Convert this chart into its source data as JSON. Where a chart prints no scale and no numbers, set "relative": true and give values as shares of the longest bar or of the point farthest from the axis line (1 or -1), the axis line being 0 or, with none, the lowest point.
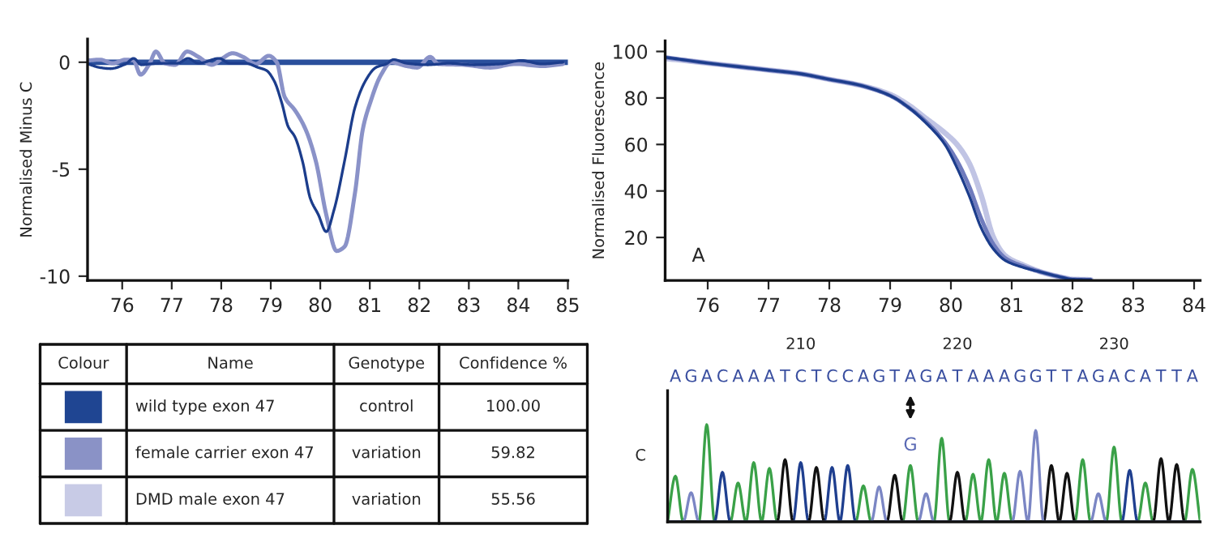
{
  "chart_data": [
    {
      "type": "line",
      "ylabel": "Normalised Minus C",
      "xlim": [
        75.3,
        85
      ],
      "ylim": [
        -10.2,
        1.08
      ],
      "xticks": [
        76,
        77,
        78,
        79,
        80,
        81,
        82,
        83,
        84,
        85
      ],
      "yticks": [
        0,
        -5,
        -10
      ],
      "series": [
        {
          "color": "#2a4f9c",
          "x": [
            75.3,
            85
          ],
          "values": [
            0,
            0
          ]
        },
        {
          "color": "#8a92c8",
          "x": [
            75.31,
            75.55,
            75.81,
            76.07,
            76.23,
            76.37,
            76.55,
            76.68,
            76.86,
            77.07,
            77.31,
            77.54,
            77.81,
            78.02,
            78.23,
            78.44,
            78.7,
            78.96,
            79.12,
            79.28,
            79.49,
            79.7,
            79.91,
            80.12,
            80.33,
            80.49,
            80.7,
            80.86,
            81.01,
            81.22,
            81.43,
            81.75,
            81.96,
            82.22,
            82.38,
            82.9,
            83.43,
            83.95,
            84.48,
            84.9
          ],
          "values": [
            0.08,
            0.12,
            -0.05,
            0.12,
            0.08,
            -0.58,
            -0.08,
            0.5,
            -0.05,
            -0.12,
            0.5,
            0.25,
            -0.12,
            0.18,
            0.42,
            0.25,
            -0.08,
            0.3,
            0,
            -1.62,
            -2.25,
            -3.12,
            -4.62,
            -7.12,
            -8.82,
            -8.62,
            -6.12,
            -3.12,
            -1.88,
            -0.62,
            0,
            -0.18,
            -0.25,
            0.25,
            -0.08,
            -0.12,
            -0.25,
            -0.08,
            -0.18,
            -0.08
          ]
        },
        {
          "color": "#1c3d8c",
          "x": [
            75.31,
            75.55,
            75.76,
            76.07,
            76.23,
            76.39,
            76.55,
            76.81,
            77.12,
            77.33,
            77.54,
            77.96,
            78.17,
            78.49,
            78.75,
            78.91,
            79.07,
            79.22,
            79.35,
            79.49,
            79.64,
            79.8,
            79.96,
            80.12,
            80.28,
            80.49,
            80.7,
            80.91,
            81.12,
            81.33,
            81.48,
            81.75,
            82.17,
            82.59,
            83.11,
            83.64,
            84.06,
            84.48,
            84.9
          ],
          "values": [
            -0.08,
            -0.25,
            -0.3,
            -0.08,
            0.18,
            -0.12,
            -0.08,
            -0.05,
            -0.05,
            0.18,
            -0.05,
            0.18,
            -0.05,
            -0.05,
            -0.25,
            -0.38,
            -0.88,
            -1.88,
            -3.0,
            -3.5,
            -4.62,
            -6.38,
            -7.12,
            -7.92,
            -6.88,
            -4.62,
            -2.12,
            -0.88,
            -0.25,
            -0.08,
            0.12,
            -0.05,
            -0.12,
            -0.05,
            -0.12,
            -0.08,
            0.08,
            -0.08,
            0
          ]
        }
      ]
    },
    {
      "type": "line",
      "ylabel": "Normalised Fluorescence",
      "annotations": [
        "A"
      ],
      "xlim": [
        75.3,
        84.1
      ],
      "ylim": [
        1.5,
        104.6
      ],
      "xticks": [
        76,
        77,
        78,
        79,
        80,
        81,
        82,
        83,
        84
      ],
      "yticks": [
        20,
        40,
        60,
        80,
        100
      ],
      "series": [
        {
          "color": "#c0c4e4",
          "x": [
            75.3,
            76,
            77,
            77.5,
            78,
            78.5,
            79,
            79.3,
            79.6,
            79.9,
            80.1,
            80.3,
            80.5,
            80.7,
            80.9,
            81.2,
            81.5,
            81.8,
            82.0,
            82.3
          ],
          "values": [
            97,
            95,
            92,
            90.5,
            88,
            85.5,
            81.5,
            77,
            71,
            65,
            60,
            52,
            38,
            20,
            12,
            8,
            5,
            3,
            2,
            1.8
          ]
        },
        {
          "color": "#6f7bbd",
          "x": [
            75.3,
            76,
            77,
            77.5,
            78,
            78.5,
            79,
            79.3,
            79.6,
            79.9,
            80.1,
            80.3,
            80.5,
            80.7,
            80.9,
            81.2,
            81.5,
            81.8,
            82.0,
            82.3
          ],
          "values": [
            97.5,
            95,
            92,
            90.5,
            88,
            85.5,
            81,
            76,
            69.5,
            61,
            53,
            42,
            28,
            17,
            11,
            7.5,
            5,
            3,
            2,
            1.8
          ]
        },
        {
          "color": "#1c3d8c",
          "x": [
            75.3,
            76,
            77,
            77.5,
            78,
            78.5,
            79,
            79.3,
            79.6,
            79.9,
            80.1,
            80.3,
            80.5,
            80.7,
            80.9,
            81.2,
            81.5,
            81.8,
            82.0,
            82.3
          ],
          "values": [
            97.5,
            95,
            92,
            90.5,
            88,
            85.5,
            81,
            76,
            69,
            60,
            50,
            38,
            24,
            15,
            10,
            7,
            5,
            3,
            2,
            1.8
          ]
        }
      ]
    },
    {
      "type": "other",
      "colors": [
        "#1f4592",
        "#8a92c6",
        "#c8cbe6"
      ],
      "annotations": [
        "Colour",
        "Name",
        "Genotype",
        "Confidence %",
        "wild type exon 47",
        "control",
        "100.00",
        "female carrier exon 47",
        "variation",
        "59.82",
        "DMD male exon 47",
        "variation",
        "55.56"
      ]
    },
    {
      "type": "line",
      "relative": true,
      "ylabel": "C",
      "tick_labels": "x",
      "xlim": [
        201.5,
        235.5
      ],
      "xticks": [
        210,
        220,
        230
      ],
      "annotations": [
        "A",
        "G",
        "A",
        "C",
        "A",
        "A",
        "A",
        "T",
        "C",
        "T",
        "C",
        "C",
        "A",
        "G",
        "T",
        "A",
        "G",
        "A",
        "T",
        "A",
        "A",
        "A",
        "G",
        "G",
        "T",
        "T",
        "A",
        "G",
        "A",
        "C",
        "A",
        "T",
        "T",
        "A",
        {
          "text": "G",
          "x": 217,
          "y": 0.58
        }
      ],
      "series": [
        {
          "color": "#3aa148",
          "x": [
            201.5,
            202,
            202.5,
            203.5,
            204,
            204.5,
            205.5,
            206,
            206.5,
            207,
            207.5,
            208,
            208.5,
            213.5,
            214,
            214.5,
            216.5,
            217,
            217.5,
            218.5,
            219,
            219.5,
            220.5,
            221,
            221.5,
            222,
            222.5,
            223,
            223.5,
            227.5,
            228,
            228.5,
            229.5,
            230,
            230.5,
            231.5,
            232,
            232.5,
            234.5,
            235,
            235.5
          ],
          "values": [
            0,
            0.47,
            0,
            0,
            1.0,
            0,
            0,
            0.4,
            0,
            0.61,
            0,
            0.55,
            0,
            0,
            0.37,
            0,
            0,
            0.58,
            0,
            0,
            0.86,
            0,
            0,
            0.49,
            0,
            0.64,
            0,
            0.5,
            0,
            0,
            0.64,
            0,
            0,
            0.77,
            0,
            0,
            0.4,
            0,
            0,
            0.54,
            0
          ]
        },
        {
          "color": "#1f3f8f",
          "x": [
            201.5,
            204.5,
            205,
            205.5,
            209.5,
            210,
            210.5,
            211.5,
            212,
            212.5,
            213,
            213.5,
            230.5,
            231,
            231.5,
            235.5
          ],
          "values": [
            0,
            0,
            0.51,
            0,
            0,
            0.61,
            0,
            0,
            0.56,
            0,
            0.58,
            0,
            0,
            0.53,
            0,
            0
          ]
        },
        {
          "color": "#111111",
          "x": [
            201.5,
            208.5,
            209,
            209.5,
            210.5,
            211,
            211.5,
            215.5,
            216,
            216.5,
            219.5,
            220,
            220.5,
            225.5,
            226,
            226.5,
            227,
            227.5,
            232.5,
            233,
            233.5,
            234,
            234.5,
            235.5
          ],
          "values": [
            0,
            0,
            0.64,
            0,
            0,
            0.56,
            0,
            0,
            0.48,
            0,
            0,
            0.51,
            0,
            0,
            0.58,
            0,
            0.5,
            0,
            0,
            0.65,
            0,
            0.59,
            0,
            0
          ]
        },
        {
          "color": "#7b86c4",
          "x": [
            201.5,
            202.5,
            203,
            203.5,
            214.5,
            215,
            215.5,
            217.5,
            218,
            218.5,
            223.5,
            224,
            224.5,
            225,
            225.5,
            228.5,
            229,
            229.5,
            235.5
          ],
          "values": [
            0,
            0,
            0.3,
            0,
            0,
            0.36,
            0,
            0,
            0.29,
            0,
            0,
            0.52,
            0,
            0.94,
            0,
            0,
            0.29,
            0,
            0
          ]
        }
      ]
    }
  ]
}
